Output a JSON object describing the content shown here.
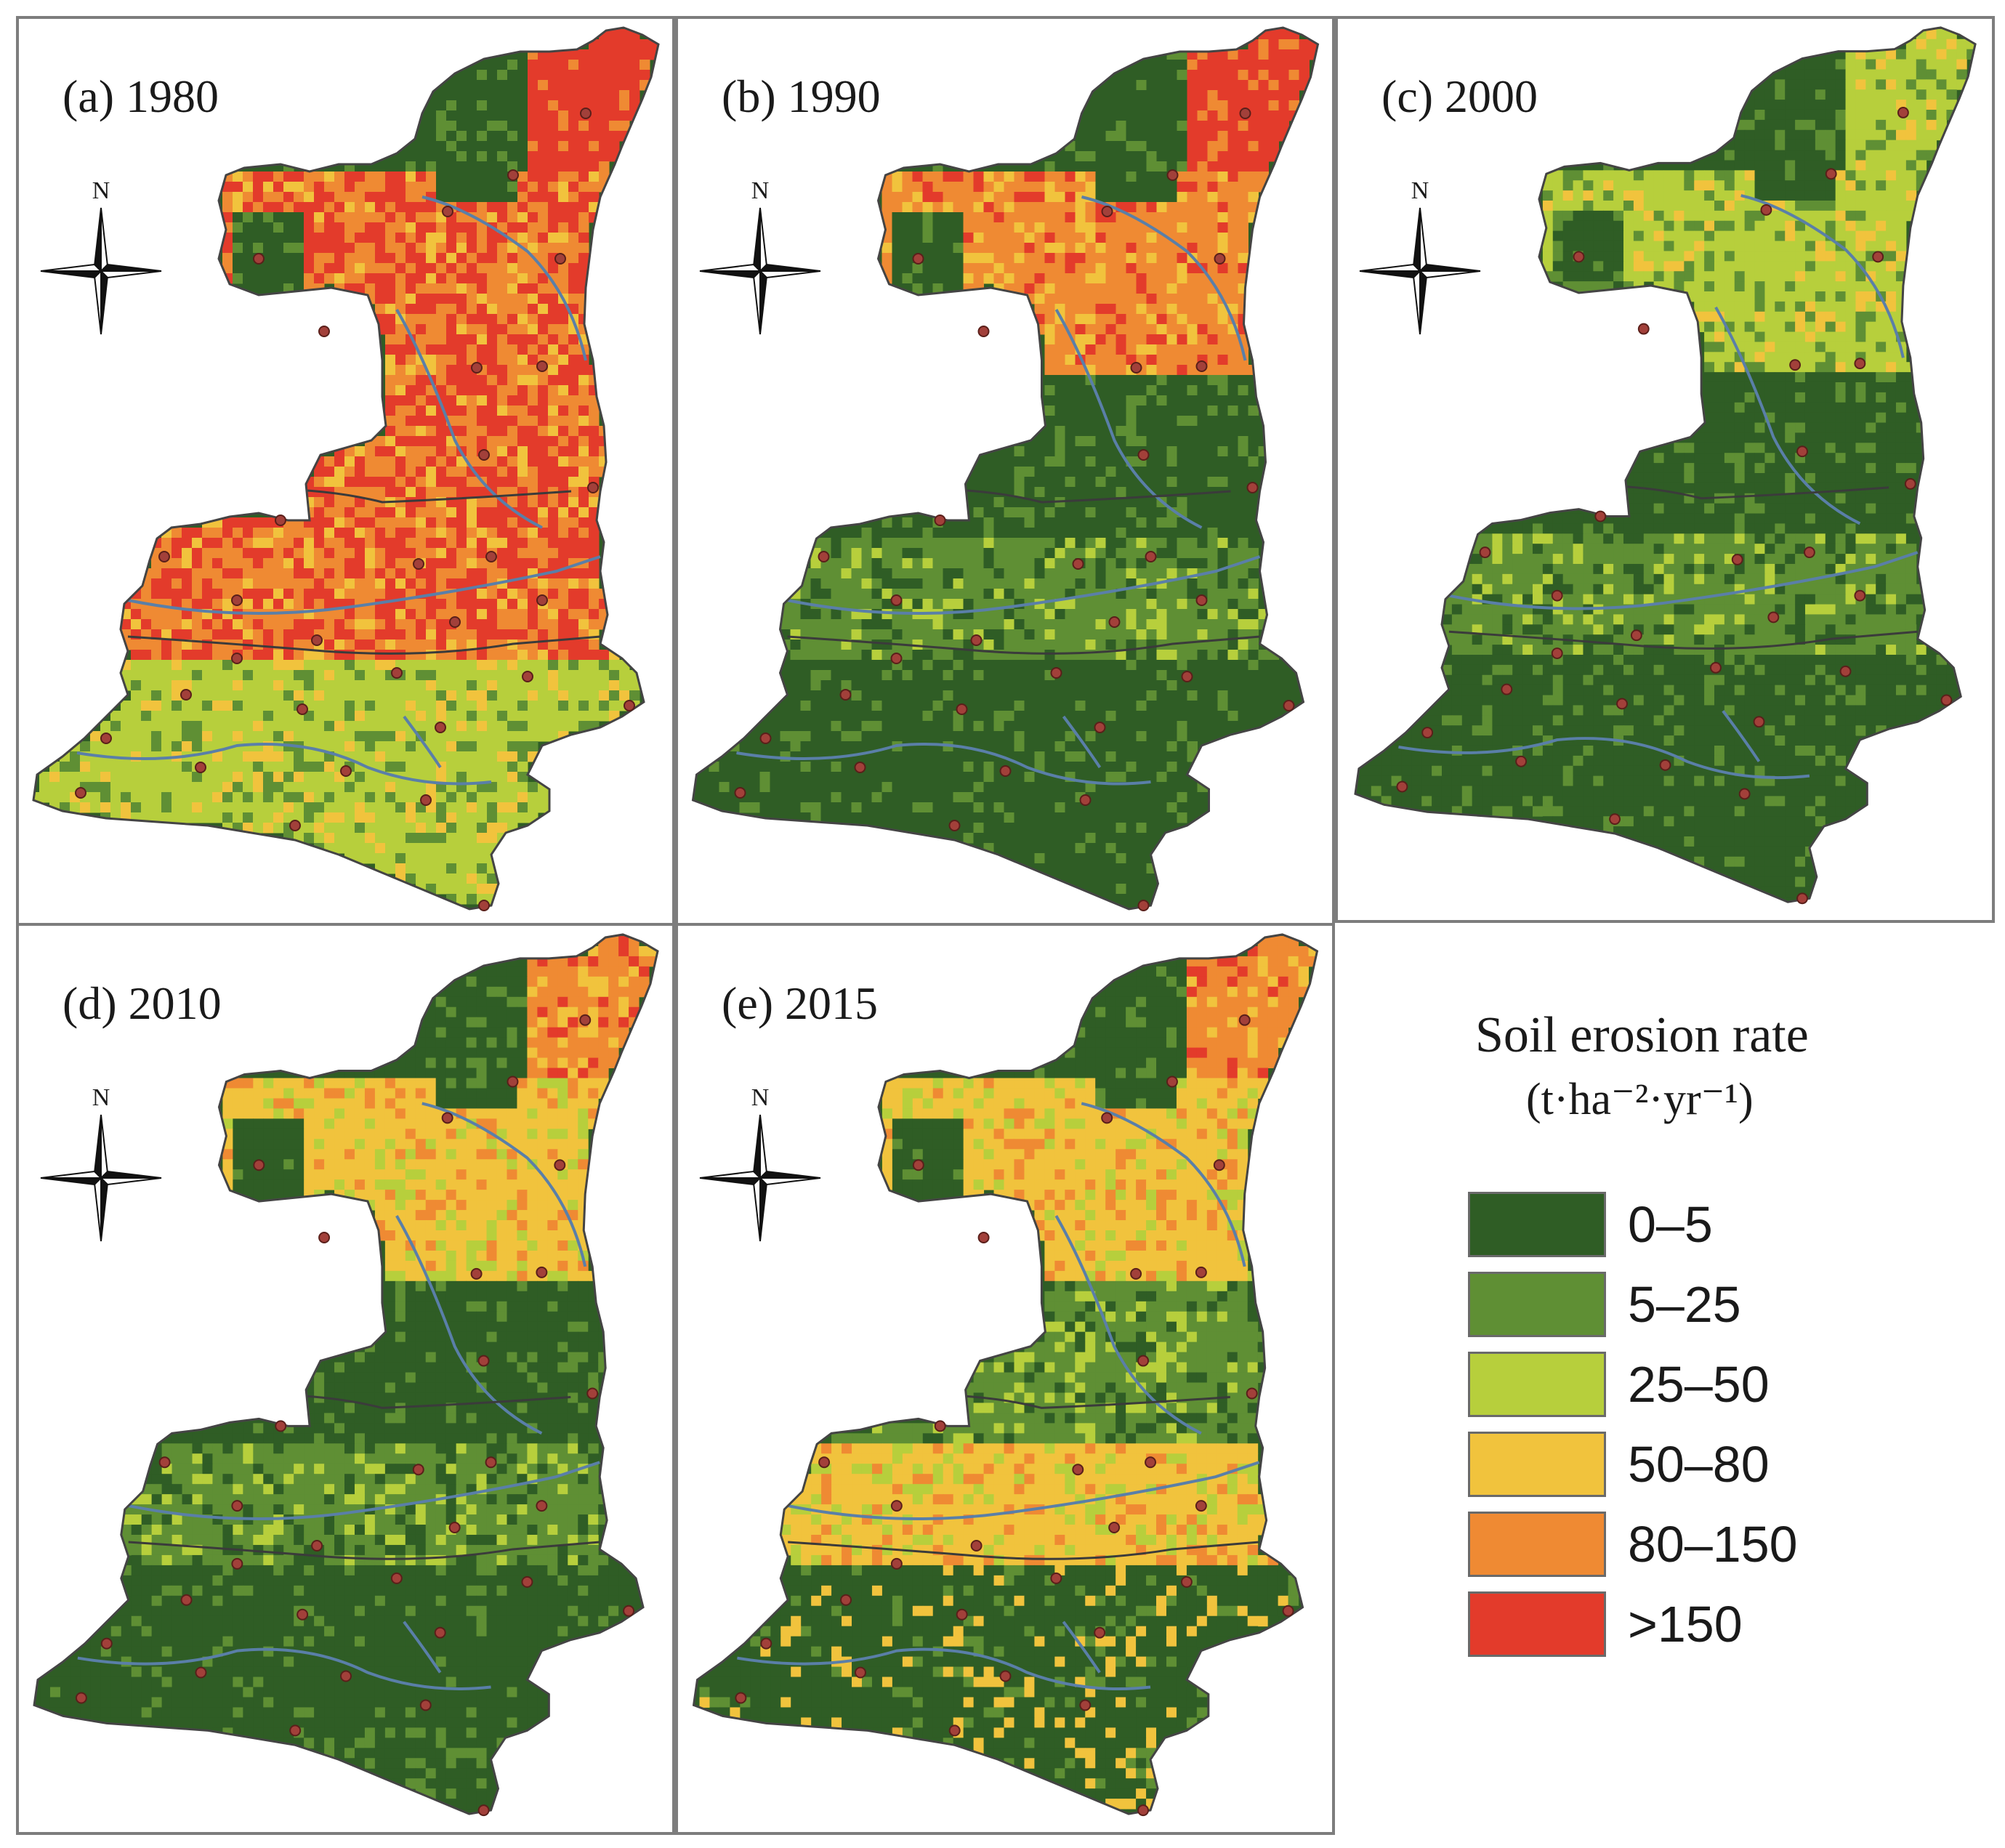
{
  "panels": [
    {
      "title": "(a) 1980",
      "dominant": ">150",
      "north": "N"
    },
    {
      "title": "(b) 1990",
      "dominant": "80–150",
      "north": "N"
    },
    {
      "title": "(c) 2000",
      "dominant": "25–50",
      "north": "N"
    },
    {
      "title": "(d) 2010",
      "dominant": "50–80",
      "north": "N"
    },
    {
      "title": "(e) 2015",
      "dominant": "50–80",
      "north": "N"
    }
  ],
  "legend": {
    "title": "Soil erosion rate",
    "unit": "(t·ha⁻²·yr⁻¹)",
    "classes": [
      {
        "label": "0–5",
        "color": "#2f5d25"
      },
      {
        "label": "5–25",
        "color": "#5f8f34"
      },
      {
        "label": "25–50",
        "color": "#b7cf3c"
      },
      {
        "label": "50–80",
        "color": "#f1c33d"
      },
      {
        "label": "80–150",
        "color": "#ef8a33"
      },
      {
        "label": ">150",
        "color": "#e33b2b"
      }
    ]
  }
}
